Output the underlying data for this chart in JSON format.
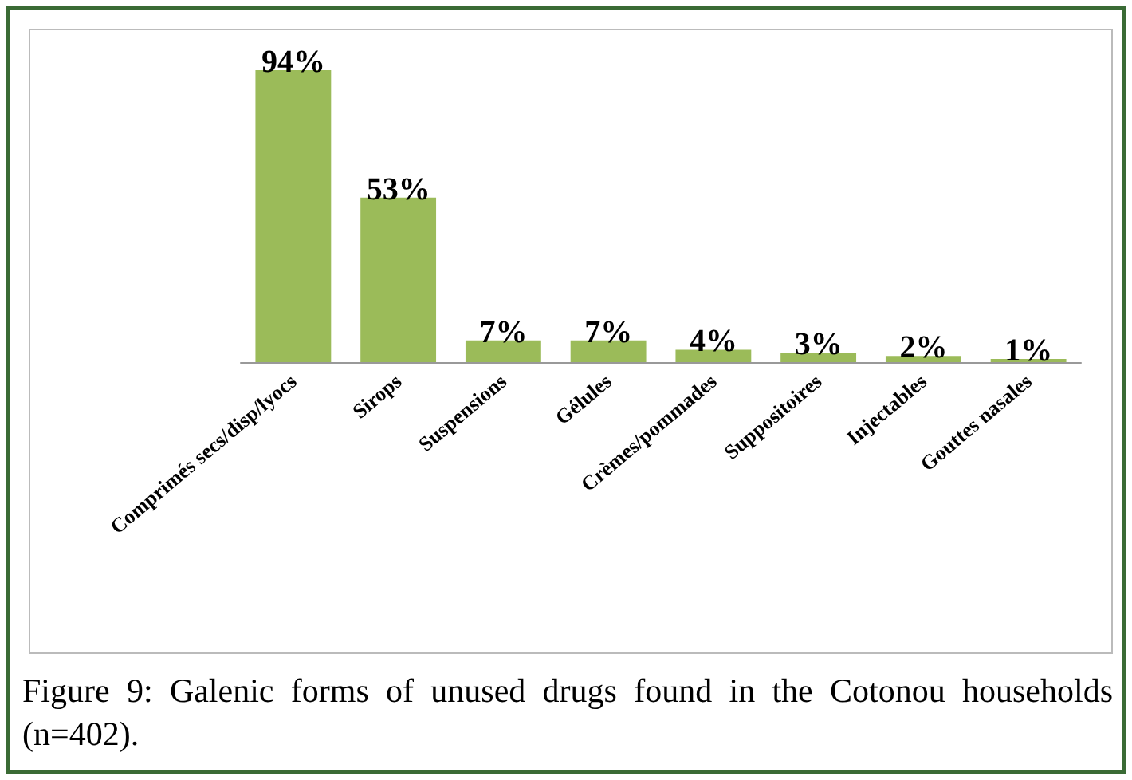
{
  "chart_data": {
    "type": "bar",
    "title": "Figure 9: Galenic forms of unused drugs found in the Cotonou households (n=402).",
    "categories": [
      "Comprimés secs/disp/lyocs",
      "Sirops",
      "Suspensions",
      "Gélules",
      "Crèmes/pommades",
      "Suppositoires",
      "Injectables",
      "Gouttes nasales"
    ],
    "values": [
      94,
      53,
      7,
      7,
      4,
      3,
      2,
      1
    ],
    "value_labels": [
      "94%",
      "53%",
      "7%",
      "7%",
      "4%",
      "3%",
      "2%",
      "1%"
    ],
    "color": "#9bbb59"
  }
}
